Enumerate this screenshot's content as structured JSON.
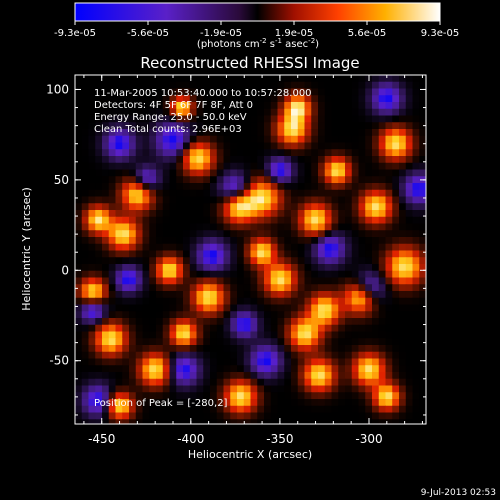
{
  "colorbar": {
    "tick_labels": [
      "-9.3e-05",
      "-5.6e-05",
      "-1.9e-05",
      "1.9e-05",
      "5.6e-05",
      "9.3e-05"
    ],
    "min": -9.3e-05,
    "max": 9.3e-05,
    "unit_label_parts": {
      "prefix": "(photons cm",
      "exp1": "-2",
      "s": " s",
      "exp2": "-1",
      "asec": " asec",
      "exp3": "-2",
      "suffix": ")"
    }
  },
  "chart_data": {
    "type": "heatmap",
    "title": "Reconstructed RHESSI Image",
    "xlabel": "Heliocentric X (arcsec)",
    "ylabel": "Heliocentric Y (arcsec)",
    "xlim": [
      -465,
      -268
    ],
    "ylim": [
      -85,
      108
    ],
    "xticks": [
      -450,
      -400,
      -350,
      -300
    ],
    "xtick_labels": [
      "-450",
      "-400",
      "-350",
      "-300"
    ],
    "yticks": [
      -50,
      0,
      50,
      100
    ],
    "ytick_labels": [
      "-50",
      "0",
      "50",
      "100"
    ],
    "annotations": [
      "11-Mar-2005 10:53:40.000 to 10:57:28.000",
      "Detectors: 4F 5F 6F 7F 8F, Att 0",
      "Energy Range: 25.0 - 50.0 keV",
      "Clean     Total counts: 2.96E+03"
    ],
    "peak_label": "Position of Peak = [-280,2]",
    "peak": [
      -280,
      2
    ],
    "colormap": [
      "#0000ff",
      "#5a20c8",
      "#3a1a6a",
      "#000000",
      "#7a1800",
      "#e02000",
      "#ff8a00",
      "#ffd020",
      "#ffffff"
    ],
    "peaks_bright": [
      [
        -343,
        78,
        6
      ],
      [
        -340,
        90,
        5
      ],
      [
        -396,
        62,
        6
      ],
      [
        -430,
        42,
        6
      ],
      [
        -438,
        20,
        6
      ],
      [
        -452,
        28,
        5
      ],
      [
        -360,
        40,
        7
      ],
      [
        -373,
        35,
        6
      ],
      [
        -330,
        28,
        6
      ],
      [
        -296,
        35,
        6
      ],
      [
        -285,
        70,
        6
      ],
      [
        -280,
        2,
        7
      ],
      [
        -305,
        -15,
        6
      ],
      [
        -325,
        -22,
        6
      ],
      [
        -336,
        -35,
        6
      ],
      [
        -328,
        -58,
        6
      ],
      [
        -300,
        -55,
        6
      ],
      [
        -290,
        -70,
        5
      ],
      [
        -390,
        -15,
        6
      ],
      [
        -404,
        -35,
        5
      ],
      [
        -420,
        -55,
        6
      ],
      [
        -445,
        -38,
        6
      ],
      [
        -455,
        -12,
        5
      ],
      [
        -412,
        0,
        5
      ],
      [
        -372,
        -70,
        6
      ],
      [
        -350,
        -5,
        6
      ],
      [
        -440,
        -75,
        5
      ],
      [
        -360,
        10,
        5
      ],
      [
        -318,
        55,
        5
      ],
      [
        -405,
        90,
        4
      ]
    ],
    "peaks_dark": [
      [
        -410,
        72,
        7
      ],
      [
        -440,
        70,
        6
      ],
      [
        -388,
        8,
        6
      ],
      [
        -452,
        -72,
        6
      ],
      [
        -455,
        -22,
        5
      ],
      [
        -404,
        -55,
        6
      ],
      [
        -375,
        45,
        6
      ],
      [
        -322,
        12,
        6
      ],
      [
        -300,
        -10,
        6
      ],
      [
        -350,
        55,
        5
      ],
      [
        -272,
        45,
        6
      ],
      [
        -290,
        95,
        6
      ],
      [
        -358,
        -50,
        6
      ],
      [
        -425,
        50,
        5
      ],
      [
        -435,
        -5,
        5
      ],
      [
        -370,
        -30,
        5
      ]
    ]
  },
  "footer": {
    "timestamp": "9-Jul-2013 02:53"
  }
}
